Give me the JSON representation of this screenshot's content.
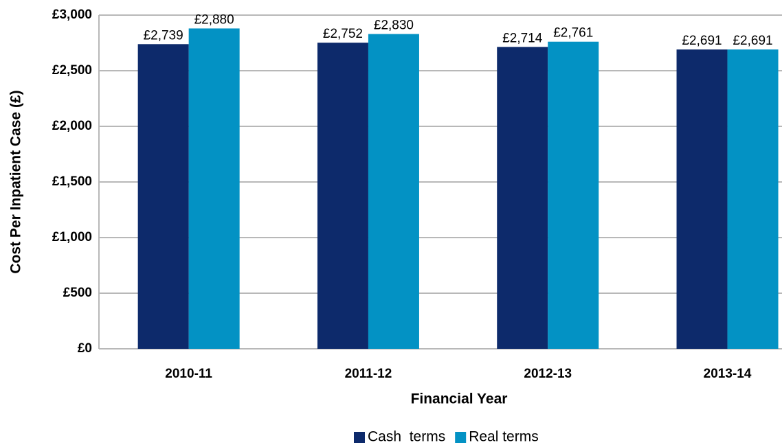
{
  "chart_data": {
    "type": "bar",
    "categories": [
      "2010-11",
      "2011-12",
      "2012-13",
      "2013-14"
    ],
    "series": [
      {
        "name": "Cash  terms",
        "color": "#0d2a6b",
        "values": [
          2739,
          2752,
          2714,
          2691
        ],
        "value_labels": [
          "£2,739",
          "£2,752",
          "£2,714",
          "£2,691"
        ]
      },
      {
        "name": "Real terms",
        "color": "#0392c4",
        "values": [
          2880,
          2830,
          2761,
          2691
        ],
        "value_labels": [
          "£2,880",
          "£2,830",
          "£2,761",
          "£2,691"
        ]
      }
    ],
    "xlabel": "Financial Year",
    "ylabel": "Cost Per Inpatient  Case (£)",
    "ylim": [
      0,
      3000
    ],
    "yticks": [
      {
        "value": 0,
        "label": "£0"
      },
      {
        "value": 500,
        "label": "£500"
      },
      {
        "value": 1000,
        "label": "£1,000"
      },
      {
        "value": 1500,
        "label": "£1,500"
      },
      {
        "value": 2000,
        "label": "£2,000"
      },
      {
        "value": 2500,
        "label": "£2,500"
      },
      {
        "value": 3000,
        "label": "£3,000"
      }
    ],
    "grid": true,
    "legend": "bottom"
  }
}
